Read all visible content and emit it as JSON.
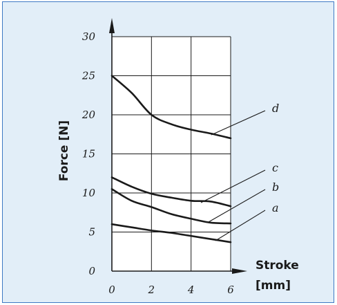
{
  "chart_data": {
    "type": "line",
    "title": "",
    "xlabel_line1": "Stroke",
    "xlabel_line2": "[mm]",
    "ylabel": "Force [N]",
    "xlim": [
      0,
      6
    ],
    "ylim": [
      0,
      30
    ],
    "x_ticks": [
      0,
      2,
      4,
      6
    ],
    "y_ticks": [
      0,
      5,
      10,
      15,
      20,
      25,
      30
    ],
    "grid": true,
    "series": [
      {
        "name": "a",
        "x": [
          0,
          1,
          2,
          3,
          4,
          5,
          6
        ],
        "y": [
          6,
          5.6,
          5.2,
          4.9,
          4.5,
          4.1,
          3.7
        ]
      },
      {
        "name": "b",
        "x": [
          0,
          1,
          2,
          3,
          4,
          5,
          6
        ],
        "y": [
          10.5,
          9.0,
          8.2,
          7.3,
          6.7,
          6.2,
          6.1
        ]
      },
      {
        "name": "c",
        "x": [
          0,
          1,
          2,
          3,
          4,
          5,
          6
        ],
        "y": [
          12,
          10.8,
          9.9,
          9.4,
          9.0,
          8.9,
          8.3
        ]
      },
      {
        "name": "d",
        "x": [
          0,
          1,
          2,
          3,
          4,
          5,
          6
        ],
        "y": [
          25,
          22.8,
          20.0,
          18.8,
          18.1,
          17.6,
          17.0
        ]
      }
    ]
  },
  "colors": {
    "background": "#e2eef8",
    "border": "#3d78c4",
    "ink": "#1a1a1a"
  }
}
